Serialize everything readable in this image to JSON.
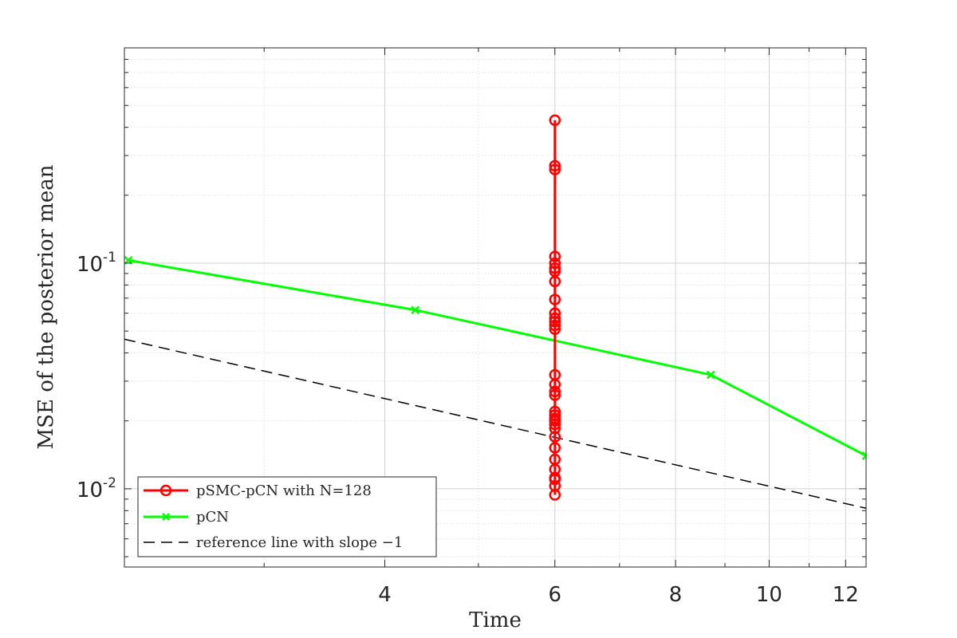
{
  "chart_data": {
    "type": "line",
    "title": "",
    "xlabel": "Time",
    "ylabel": "MSE of the posterior mean",
    "x_scale": "log",
    "y_scale": "log",
    "xlim": [
      2.15,
      12.6
    ],
    "ylim": [
      0.0045,
      0.9
    ],
    "grid": true,
    "minor_grid": true,
    "legend_position": "bottom-left",
    "x_ticks": [
      {
        "value": 4,
        "label": "4"
      },
      {
        "value": 6,
        "label": "6"
      },
      {
        "value": 8,
        "label": "8"
      },
      {
        "value": 10,
        "label": "10"
      },
      {
        "value": 12,
        "label": "12"
      }
    ],
    "y_ticks": [
      {
        "value": 0.01,
        "base": "10",
        "exp": "-2"
      },
      {
        "value": 0.1,
        "base": "10",
        "exp": "-1"
      }
    ],
    "series": [
      {
        "name": "pSMC-pCN with N=128",
        "color": "#ff0000",
        "marker": "circle",
        "line": "solid",
        "x": [
          6,
          6,
          6,
          6,
          6,
          6,
          6,
          6,
          6,
          6,
          6,
          6,
          6,
          6,
          6,
          6,
          6,
          6,
          6,
          6,
          6,
          6,
          6,
          6,
          6,
          6,
          6,
          6,
          6,
          6,
          6,
          6
        ],
        "y": [
          0.43,
          0.27,
          0.26,
          0.107,
          0.1,
          0.095,
          0.092,
          0.083,
          0.069,
          0.06,
          0.057,
          0.055,
          0.053,
          0.051,
          0.032,
          0.029,
          0.027,
          0.026,
          0.022,
          0.0212,
          0.0205,
          0.02,
          0.0193,
          0.0185,
          0.017,
          0.0152,
          0.0135,
          0.0122,
          0.0112,
          0.011,
          0.0103,
          0.0094
        ]
      },
      {
        "name": "pCN",
        "color": "#00ff00",
        "marker": "x",
        "line": "solid",
        "x": [
          2.17,
          4.3,
          8.7,
          12.6
        ],
        "y": [
          0.103,
          0.062,
          0.032,
          0.014
        ]
      },
      {
        "name": "reference line with slope −1",
        "color": "#000000",
        "marker": "none",
        "line": "dashed",
        "x": [
          2.15,
          12.6
        ],
        "y": [
          0.046,
          0.0082
        ]
      }
    ]
  }
}
